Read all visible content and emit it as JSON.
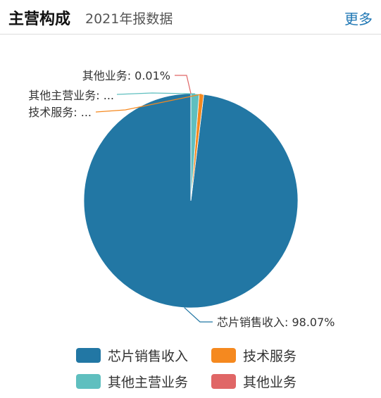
{
  "header": {
    "title": "主营构成",
    "subtitle": "2021年报数据",
    "more_label": "更多"
  },
  "chart_data": {
    "type": "pie",
    "slices": [
      {
        "name": "芯片销售收入",
        "value": 98.07,
        "color": "#2277a4",
        "label": "芯片销售收入: 98.07%"
      },
      {
        "name": "技术服务",
        "value": 0.69,
        "color": "#f5891f",
        "label": "技术服务: ..."
      },
      {
        "name": "其他主营业务",
        "value": 1.23,
        "color": "#5fbfbf",
        "label": "其他主营业务: ..."
      },
      {
        "name": "其他业务",
        "value": 0.01,
        "color": "#e06666",
        "label": "其他业务: 0.01%"
      }
    ],
    "legend": {
      "position": "bottom",
      "items": [
        "芯片销售收入",
        "技术服务",
        "其他主营业务",
        "其他业务"
      ]
    }
  }
}
